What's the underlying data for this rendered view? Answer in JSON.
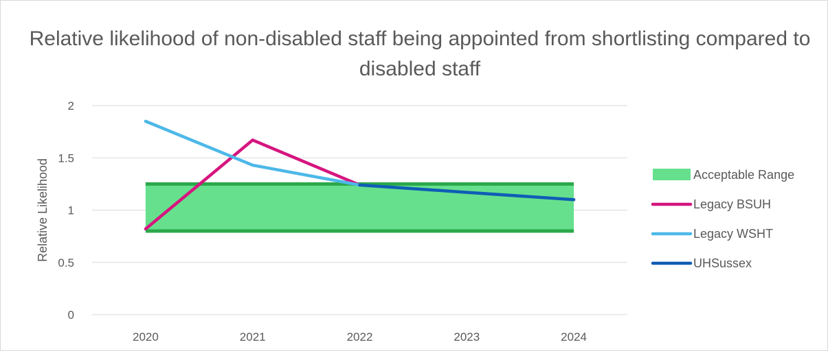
{
  "chart_data": {
    "type": "line",
    "title": "Relative likelihood of non-disabled staff being appointed from shortlisting compared to disabled staff",
    "ylabel": "Relative Likelihood",
    "xlabel": "",
    "categories": [
      "2020",
      "2021",
      "2022",
      "2023",
      "2024"
    ],
    "ylim": [
      0,
      2
    ],
    "yticks": [
      0,
      0.5,
      1,
      1.5,
      2
    ],
    "grid": true,
    "legend_position": "right",
    "band": {
      "name": "Acceptable Range",
      "lower": 0.8,
      "upper": 1.25,
      "fill_color": "#66e08d",
      "edge_color": "#2ba84a"
    },
    "series": [
      {
        "name": "Legacy BSUH",
        "color": "#d6157f",
        "points": [
          {
            "x": "2020",
            "y": 0.82
          },
          {
            "x": "2021",
            "y": 1.67
          },
          {
            "x": "2022",
            "y": 1.24
          }
        ]
      },
      {
        "name": "Legacy WSHT",
        "color": "#4db8e8",
        "points": [
          {
            "x": "2020",
            "y": 1.85
          },
          {
            "x": "2021",
            "y": 1.43
          },
          {
            "x": "2022",
            "y": 1.24
          }
        ]
      },
      {
        "name": "UHSussex",
        "color": "#0f5db5",
        "points": [
          {
            "x": "2022",
            "y": 1.24
          },
          {
            "x": "2023",
            "y": 1.17
          },
          {
            "x": "2024",
            "y": 1.1
          }
        ]
      }
    ]
  }
}
